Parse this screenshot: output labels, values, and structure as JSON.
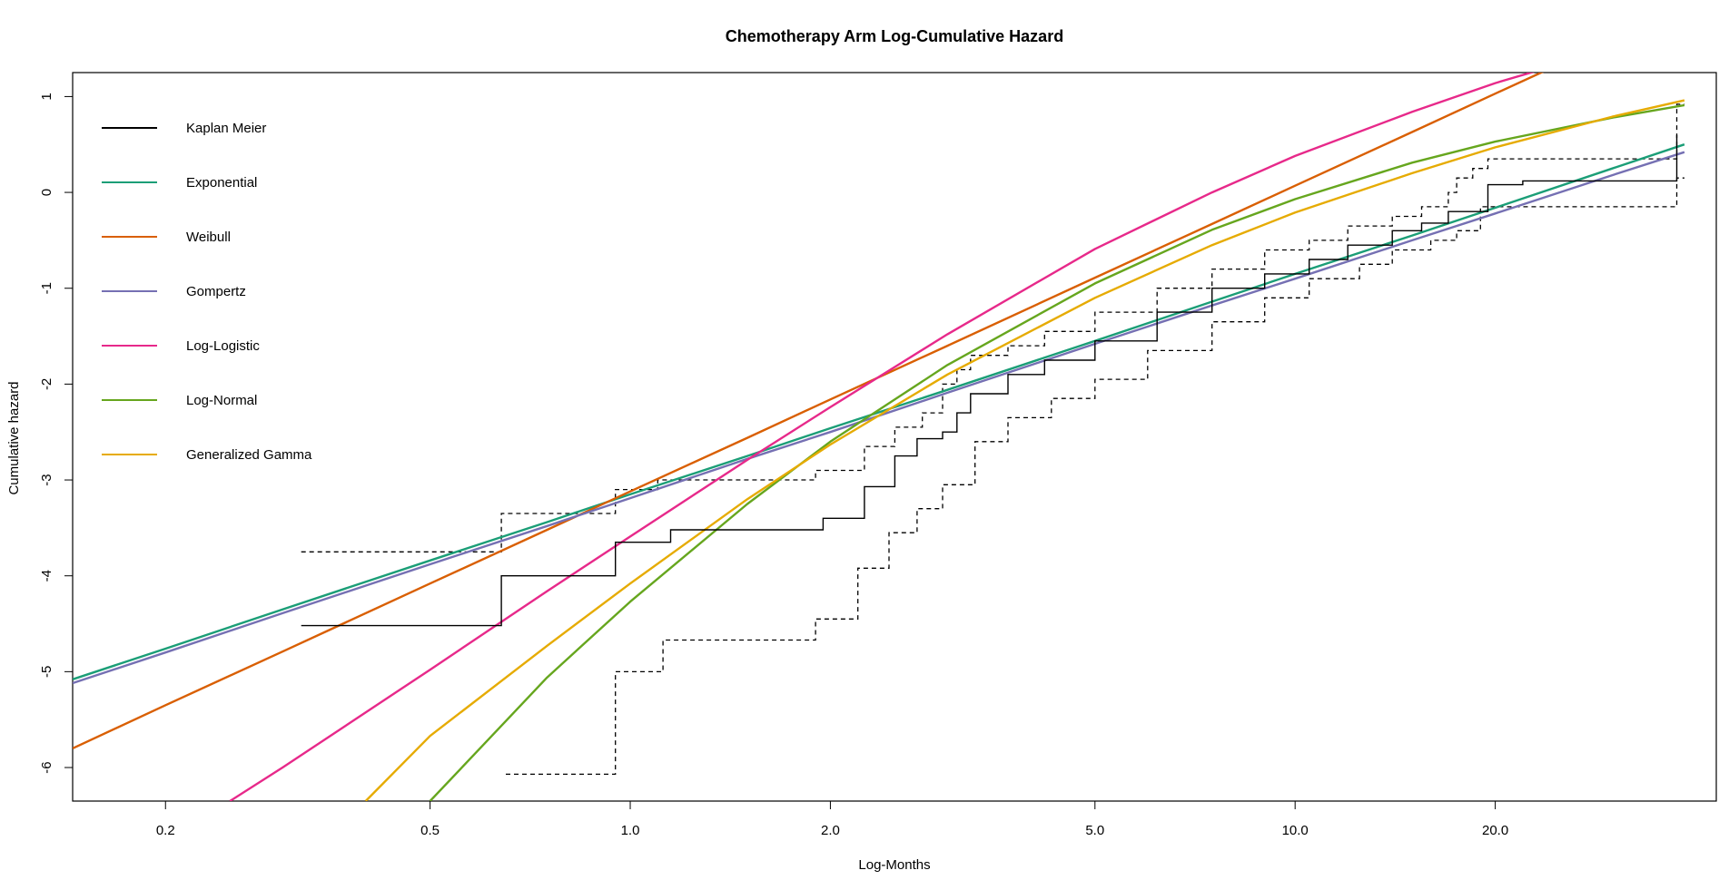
{
  "chart_data": {
    "type": "line",
    "title": "Chemotherapy Arm Log-Cumulative Hazard",
    "xlabel": "Log-Months",
    "ylabel": "Cumulative hazard",
    "x_scale": "log",
    "xlim": [
      0.145,
      43.0
    ],
    "ylim": [
      -6.35,
      1.25
    ],
    "x_ticks": [
      0.2,
      0.5,
      1.0,
      2.0,
      5.0,
      10.0,
      20.0
    ],
    "x_tick_labels": [
      "0.2",
      "0.5",
      "1.0",
      "2.0",
      "5.0",
      "10.0",
      "20.0"
    ],
    "y_ticks": [
      1,
      0,
      -1,
      -2,
      -3,
      -4,
      -5,
      -6
    ],
    "y_tick_labels": [
      "1",
      "0",
      "-1",
      "-2",
      "-3",
      "-4",
      "-5",
      "-6"
    ],
    "grid": false,
    "legend_position": "top-left",
    "km": {
      "name": "Kaplan Meier",
      "color": "#000000",
      "steps": [
        [
          0.32,
          -4.52
        ],
        [
          0.64,
          -4.0
        ],
        [
          0.95,
          -3.65
        ],
        [
          1.15,
          -3.52
        ],
        [
          1.95,
          -3.4
        ],
        [
          2.25,
          -3.07
        ],
        [
          2.5,
          -2.75
        ],
        [
          2.7,
          -2.57
        ],
        [
          2.95,
          -2.5
        ],
        [
          3.1,
          -2.3
        ],
        [
          3.25,
          -2.1
        ],
        [
          3.7,
          -1.9
        ],
        [
          4.2,
          -1.75
        ],
        [
          5.0,
          -1.55
        ],
        [
          6.2,
          -1.25
        ],
        [
          7.5,
          -1.0
        ],
        [
          9.0,
          -0.85
        ],
        [
          10.5,
          -0.7
        ],
        [
          12.0,
          -0.55
        ],
        [
          14.0,
          -0.4
        ],
        [
          15.5,
          -0.32
        ],
        [
          17.0,
          -0.2
        ],
        [
          19.5,
          0.08
        ],
        [
          22.0,
          0.12
        ],
        [
          37.5,
          0.12
        ],
        [
          37.5,
          0.6
        ]
      ],
      "end_x": 37.5,
      "lower_ci": [
        [
          0.65,
          -6.07
        ],
        [
          0.95,
          -5.0
        ],
        [
          1.12,
          -4.67
        ],
        [
          1.9,
          -4.45
        ],
        [
          2.2,
          -3.92
        ],
        [
          2.45,
          -3.55
        ],
        [
          2.7,
          -3.3
        ],
        [
          2.95,
          -3.05
        ],
        [
          3.3,
          -2.6
        ],
        [
          3.7,
          -2.35
        ],
        [
          4.3,
          -2.15
        ],
        [
          5.0,
          -1.95
        ],
        [
          6.0,
          -1.65
        ],
        [
          7.5,
          -1.35
        ],
        [
          9.0,
          -1.1
        ],
        [
          10.5,
          -0.9
        ],
        [
          12.5,
          -0.75
        ],
        [
          14.0,
          -0.6
        ],
        [
          16.0,
          -0.5
        ],
        [
          17.5,
          -0.4
        ],
        [
          19.0,
          -0.15
        ],
        [
          37.5,
          -0.15
        ],
        [
          37.5,
          0.15
        ],
        [
          38.5,
          0.15
        ]
      ],
      "lower_ci_end_x": 38.5,
      "upper_ci": [
        [
          0.32,
          -3.75
        ],
        [
          0.64,
          -3.35
        ],
        [
          0.95,
          -3.1
        ],
        [
          1.1,
          -3.0
        ],
        [
          1.9,
          -2.9
        ],
        [
          2.25,
          -2.65
        ],
        [
          2.5,
          -2.45
        ],
        [
          2.75,
          -2.3
        ],
        [
          2.95,
          -2.0
        ],
        [
          3.1,
          -1.85
        ],
        [
          3.25,
          -1.7
        ],
        [
          3.7,
          -1.6
        ],
        [
          4.2,
          -1.45
        ],
        [
          5.0,
          -1.25
        ],
        [
          6.2,
          -1.0
        ],
        [
          7.5,
          -0.8
        ],
        [
          9.0,
          -0.6
        ],
        [
          10.5,
          -0.5
        ],
        [
          12.0,
          -0.35
        ],
        [
          14.0,
          -0.25
        ],
        [
          15.5,
          -0.15
        ],
        [
          17.0,
          0.0
        ],
        [
          17.5,
          0.15
        ],
        [
          18.5,
          0.25
        ],
        [
          19.5,
          0.35
        ],
        [
          37.5,
          0.35
        ],
        [
          37.5,
          0.92
        ],
        [
          38.5,
          0.92
        ]
      ],
      "upper_ci_end_x": 38.5
    },
    "series": [
      {
        "name": "Exponential",
        "color": "#1B9E77",
        "x": [
          0.145,
          0.2,
          0.3,
          0.5,
          0.75,
          1.0,
          1.5,
          2.0,
          3.0,
          5.0,
          7.5,
          10.0,
          15.0,
          20.0,
          30.0,
          38.5
        ],
        "y": [
          -5.08,
          -4.76,
          -4.35,
          -3.84,
          -3.44,
          -3.15,
          -2.75,
          -2.46,
          -2.06,
          -1.55,
          -1.14,
          -0.85,
          -0.45,
          -0.16,
          0.25,
          0.5
        ]
      },
      {
        "name": "Weibull",
        "color": "#D95F02",
        "x": [
          0.145,
          0.2,
          0.3,
          0.5,
          0.75,
          1.0,
          1.5,
          2.0,
          3.0,
          5.0,
          7.5,
          10.0,
          15.0,
          20.0,
          30.0,
          38.5
        ],
        "y": [
          -5.8,
          -5.35,
          -4.79,
          -4.08,
          -3.52,
          -3.12,
          -2.56,
          -2.16,
          -1.6,
          -0.89,
          -0.33,
          0.07,
          0.63,
          1.03,
          1.59,
          1.94
        ]
      },
      {
        "name": "Gompertz",
        "color": "#7570B3",
        "x": [
          0.145,
          0.2,
          0.3,
          0.5,
          0.75,
          1.0,
          1.5,
          2.0,
          3.0,
          5.0,
          7.5,
          10.0,
          15.0,
          20.0,
          30.0,
          38.5
        ],
        "y": [
          -5.12,
          -4.8,
          -4.39,
          -3.88,
          -3.48,
          -3.19,
          -2.78,
          -2.5,
          -2.09,
          -1.58,
          -1.18,
          -0.9,
          -0.5,
          -0.22,
          0.18,
          0.42
        ]
      },
      {
        "name": "Log-Logistic",
        "color": "#E7298A",
        "x": [
          0.25,
          0.3,
          0.5,
          0.75,
          1.0,
          1.5,
          2.0,
          3.0,
          5.0,
          7.5,
          10.0,
          15.0,
          20.0,
          30.0,
          38.5
        ],
        "y": [
          -6.35,
          -6.0,
          -4.98,
          -4.16,
          -3.59,
          -2.79,
          -2.24,
          -1.48,
          -0.59,
          0.0,
          0.38,
          0.84,
          1.14,
          1.5,
          1.7
        ]
      },
      {
        "name": "Log-Normal",
        "color": "#66A61E",
        "x": [
          0.5,
          0.6,
          0.75,
          1.0,
          1.5,
          2.0,
          3.0,
          5.0,
          7.5,
          10.0,
          15.0,
          20.0,
          30.0,
          38.5
        ],
        "y": [
          -6.35,
          -5.77,
          -5.06,
          -4.27,
          -3.25,
          -2.6,
          -1.8,
          -0.95,
          -0.39,
          -0.07,
          0.31,
          0.53,
          0.78,
          0.91
        ]
      },
      {
        "name": "Generalized Gamma",
        "color": "#E6AB02",
        "x": [
          0.4,
          0.5,
          0.75,
          1.0,
          1.5,
          2.0,
          3.0,
          5.0,
          7.5,
          10.0,
          15.0,
          20.0,
          30.0,
          38.5
        ],
        "y": [
          -6.35,
          -5.67,
          -4.73,
          -4.08,
          -3.2,
          -2.63,
          -1.9,
          -1.1,
          -0.55,
          -0.21,
          0.2,
          0.47,
          0.79,
          0.96
        ]
      }
    ],
    "legend": [
      "Kaplan Meier",
      "Exponential",
      "Weibull",
      "Gompertz",
      "Log-Logistic",
      "Log-Normal",
      "Generalized Gamma"
    ]
  }
}
